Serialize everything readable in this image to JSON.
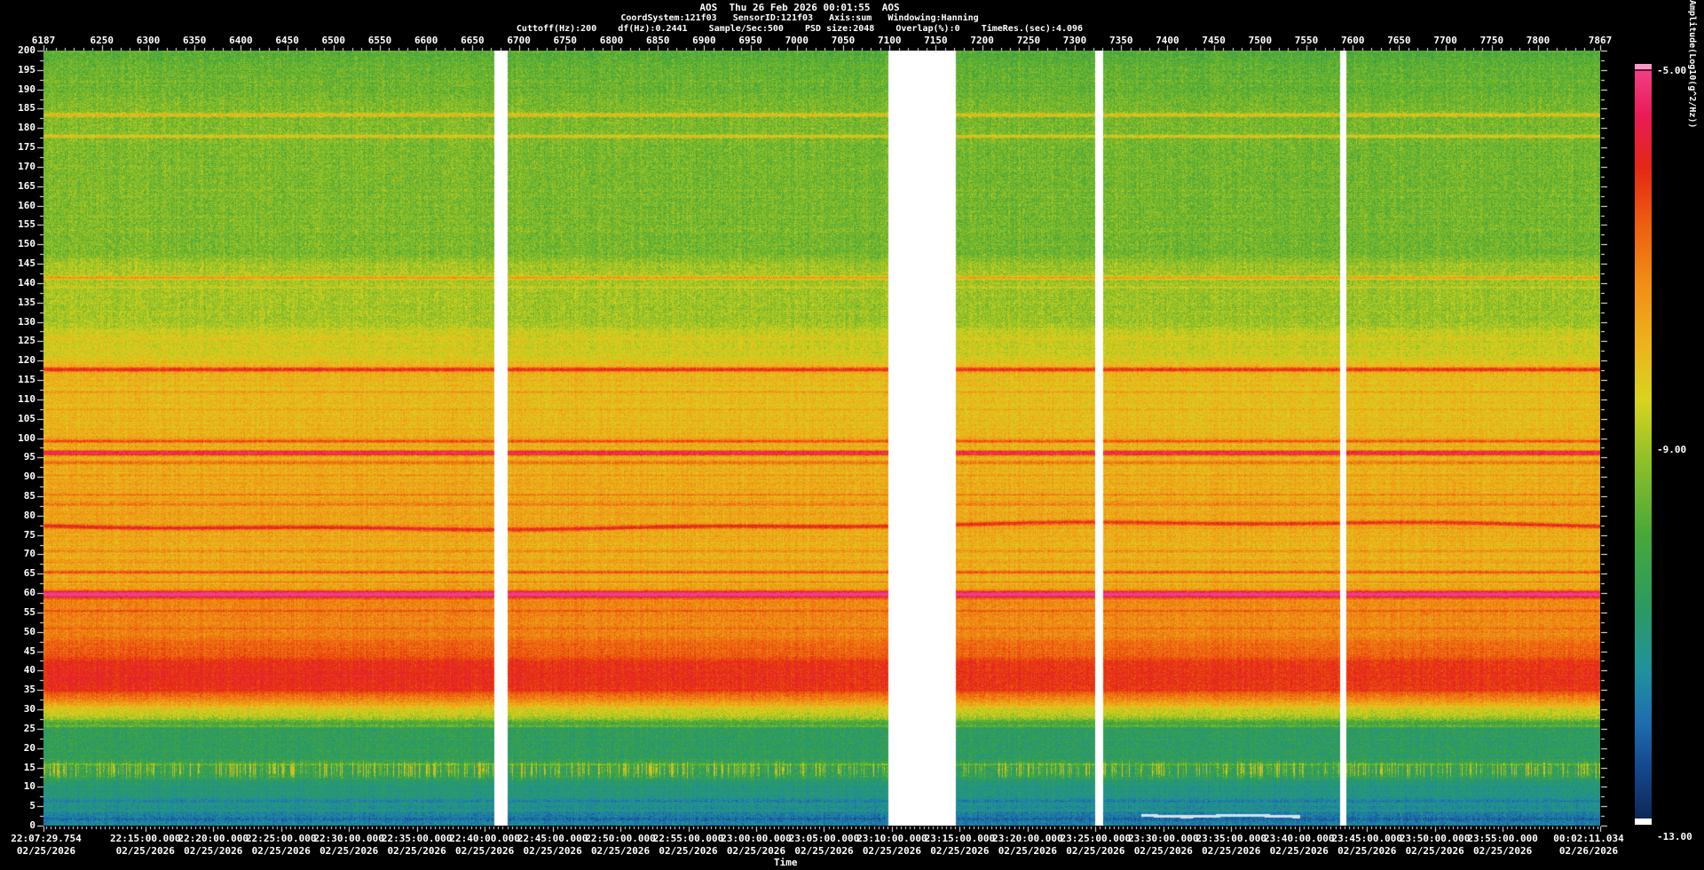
{
  "header": {
    "line1": "AOS  Thu 26 Feb 2026 00:01:55  AOS",
    "line2": "CoordSystem:121f03   SensorID:121f03   Axis:sum   Windowing:Hanning",
    "line3": "Cuttoff(Hz):200    df(Hz):0.2441    Sample/Sec:500    PSD size:2048    Overlap(%):0    TimeRes.(sec):4.096"
  },
  "top_axis": {
    "values": [
      6187,
      6250,
      6300,
      6350,
      6400,
      6450,
      6500,
      6550,
      6600,
      6650,
      6700,
      6750,
      6800,
      6850,
      6900,
      6950,
      7000,
      7050,
      7100,
      7150,
      7200,
      7250,
      7300,
      7350,
      7400,
      7450,
      7500,
      7550,
      7600,
      7650,
      7700,
      7750,
      7800,
      7867
    ]
  },
  "left_axis": {
    "values": [
      200,
      195,
      190,
      185,
      180,
      175,
      170,
      165,
      160,
      155,
      150,
      145,
      140,
      135,
      130,
      125,
      120,
      115,
      110,
      105,
      100,
      95,
      90,
      85,
      80,
      75,
      70,
      65,
      60,
      55,
      50,
      45,
      40,
      35,
      30,
      25,
      20,
      15,
      10,
      5,
      0
    ]
  },
  "bottom_axis": {
    "label": "Time",
    "ticks": [
      {
        "time": "22:07:29.754",
        "date": "02/25/2026"
      },
      {
        "time": "22:15:00.000",
        "date": "02/25/2026"
      },
      {
        "time": "22:20:00.000",
        "date": "02/25/2026"
      },
      {
        "time": "22:25:00.000",
        "date": "02/25/2026"
      },
      {
        "time": "22:30:00.000",
        "date": "02/25/2026"
      },
      {
        "time": "22:35:00.000",
        "date": "02/25/2026"
      },
      {
        "time": "22:40:00.000",
        "date": "02/25/2026"
      },
      {
        "time": "22:45:00.000",
        "date": "02/25/2026"
      },
      {
        "time": "22:50:00.000",
        "date": "02/25/2026"
      },
      {
        "time": "22:55:00.000",
        "date": "02/25/2026"
      },
      {
        "time": "23:00:00.000",
        "date": "02/25/2026"
      },
      {
        "time": "23:05:00.000",
        "date": "02/25/2026"
      },
      {
        "time": "23:10:00.000",
        "date": "02/25/2026"
      },
      {
        "time": "23:15:00.000",
        "date": "02/25/2026"
      },
      {
        "time": "23:20:00.000",
        "date": "02/25/2026"
      },
      {
        "time": "23:25:00.000",
        "date": "02/25/2026"
      },
      {
        "time": "23:30:00.000",
        "date": "02/25/2026"
      },
      {
        "time": "23:35:00.000",
        "date": "02/25/2026"
      },
      {
        "time": "23:40:00.000",
        "date": "02/25/2026"
      },
      {
        "time": "23:45:00.000",
        "date": "02/25/2026"
      },
      {
        "time": "23:50:00.000",
        "date": "02/25/2026"
      },
      {
        "time": "23:55:00.000",
        "date": "02/25/2026"
      },
      {
        "time": "00:02:11.034",
        "date": "02/26/2026"
      }
    ]
  },
  "colorbar": {
    "title": "Amplitude(Log10(g^2/Hz))",
    "labels": [
      "-5.00",
      "-9.00",
      "-13.00"
    ],
    "top_cap_color": "#f799c5",
    "top_line_color": "#6e0f2e",
    "bottom_cap_color": "#ffffff"
  },
  "chart_data": {
    "type": "spectrogram",
    "title": "AOS  Thu 26 Feb 2026 00:01:55  AOS",
    "x_axis": {
      "label": "Time",
      "start_time": "22:07:29.754",
      "start_date": "02/25/2026",
      "end_time": "00:02:11.034",
      "end_date": "02/26/2026",
      "major_tick_minutes": 5,
      "minor_tick_seconds": 20
    },
    "record_axis": {
      "first": 6187,
      "last": 7867,
      "step": 50
    },
    "freq_axis": {
      "unit": "Hz",
      "min": 0,
      "max": 200,
      "label_step": 5,
      "minor_step": 2.5
    },
    "amplitude_axis": {
      "label": "Amplitude(Log10(g^2/Hz))",
      "max": -5.0,
      "mid": -9.0,
      "min": -13.0
    },
    "data_gaps": [
      {
        "from": "22:40:41",
        "to": "22:41:43"
      },
      {
        "from": "23:09:46",
        "to": "23:14:44"
      },
      {
        "from": "23:24:59",
        "to": "23:25:35"
      },
      {
        "from": "23:43:01",
        "to": "23:43:28"
      }
    ],
    "colormap": [
      {
        "v": 0.0,
        "c": "#0e2858"
      },
      {
        "v": 0.07,
        "c": "#14498e"
      },
      {
        "v": 0.13,
        "c": "#1e6eb0"
      },
      {
        "v": 0.2,
        "c": "#20929c"
      },
      {
        "v": 0.28,
        "c": "#2b9a62"
      },
      {
        "v": 0.38,
        "c": "#48a838"
      },
      {
        "v": 0.48,
        "c": "#90c028"
      },
      {
        "v": 0.56,
        "c": "#d8d41f"
      },
      {
        "v": 0.64,
        "c": "#eeb01c"
      },
      {
        "v": 0.72,
        "c": "#f08c14"
      },
      {
        "v": 0.8,
        "c": "#ee5a10"
      },
      {
        "v": 0.87,
        "c": "#e42814"
      },
      {
        "v": 0.94,
        "c": "#ea1a55"
      },
      {
        "v": 1.0,
        "c": "#ef3f85"
      }
    ],
    "band_profile": [
      {
        "f_hi": 200,
        "f_lo": 196,
        "level": 0.4,
        "noise": 0.07
      },
      {
        "f_hi": 196,
        "f_lo": 188,
        "level": 0.43,
        "noise": 0.07
      },
      {
        "f_hi": 188,
        "f_lo": 146,
        "level": 0.45,
        "noise": 0.07
      },
      {
        "f_hi": 146,
        "f_lo": 128,
        "level": 0.5,
        "noise": 0.065
      },
      {
        "f_hi": 128,
        "f_lo": 120,
        "level": 0.56,
        "noise": 0.06
      },
      {
        "f_hi": 120,
        "f_lo": 101,
        "level": 0.62,
        "noise": 0.06
      },
      {
        "f_hi": 101,
        "f_lo": 88,
        "level": 0.645,
        "noise": 0.06
      },
      {
        "f_hi": 88,
        "f_lo": 76,
        "level": 0.665,
        "noise": 0.06
      },
      {
        "f_hi": 76,
        "f_lo": 61,
        "level": 0.655,
        "noise": 0.06
      },
      {
        "f_hi": 61,
        "f_lo": 48,
        "level": 0.73,
        "noise": 0.055
      },
      {
        "f_hi": 48,
        "f_lo": 43,
        "level": 0.79,
        "noise": 0.05
      },
      {
        "f_hi": 43,
        "f_lo": 34,
        "level": 0.865,
        "noise": 0.045
      },
      {
        "f_hi": 34,
        "f_lo": 31,
        "level": 0.72,
        "noise": 0.06
      },
      {
        "f_hi": 31,
        "f_lo": 27,
        "level": 0.55,
        "noise": 0.07
      },
      {
        "f_hi": 27,
        "f_lo": 17,
        "level": 0.3,
        "noise": 0.07
      },
      {
        "f_hi": 17,
        "f_lo": 12,
        "level": 0.32,
        "noise": 0.09
      },
      {
        "f_hi": 12,
        "f_lo": 7,
        "level": 0.245,
        "noise": 0.06
      },
      {
        "f_hi": 7,
        "f_lo": 4,
        "level": 0.215,
        "noise": 0.06
      },
      {
        "f_hi": 4,
        "f_lo": 0,
        "level": 0.165,
        "noise": 0.06
      }
    ],
    "tonal_lines": [
      {
        "f": 183.5,
        "boost": 0.2,
        "w": 2
      },
      {
        "f": 178.0,
        "boost": 0.15,
        "w": 2
      },
      {
        "f": 141.5,
        "boost": 0.2,
        "w": 2
      },
      {
        "f": 139.0,
        "boost": 0.08,
        "w": 1
      },
      {
        "f": 117.8,
        "boost": 0.25,
        "w": 3
      },
      {
        "f": 112.0,
        "boost": 0.07,
        "w": 1
      },
      {
        "f": 107.5,
        "boost": 0.07,
        "w": 1
      },
      {
        "f": 99.3,
        "boost": 0.2,
        "w": 2
      },
      {
        "f": 96.3,
        "boost": 0.33,
        "w": 3
      },
      {
        "f": 93.8,
        "boost": 0.12,
        "w": 2
      },
      {
        "f": 90.5,
        "boost": 0.07,
        "w": 1
      },
      {
        "f": 85.5,
        "boost": 0.08,
        "w": 1
      },
      {
        "f": 83.0,
        "boost": 0.08,
        "w": 2
      },
      {
        "f": 71.0,
        "boost": 0.07,
        "w": 1
      },
      {
        "f": 68.0,
        "boost": 0.06,
        "w": 1
      },
      {
        "f": 65.5,
        "boost": 0.18,
        "w": 2
      },
      {
        "f": 63.0,
        "boost": 0.08,
        "w": 1
      },
      {
        "f": 59.8,
        "boost": 0.34,
        "w": 4
      },
      {
        "f": 55.5,
        "boost": 0.08,
        "w": 1
      },
      {
        "f": 51.0,
        "boost": 0.06,
        "w": 1
      },
      {
        "f": 25.8,
        "boost": 0.11,
        "w": 2
      },
      {
        "f": 15.9,
        "boost": 0.13,
        "w": 1
      },
      {
        "f": 6.5,
        "boost": -0.05,
        "w": 2
      },
      {
        "f": 4.0,
        "boost": 0.06,
        "w": 1
      },
      {
        "f": 1.8,
        "boost": -0.05,
        "w": 2
      }
    ],
    "features": {
      "spiky_band": {
        "f_center": 14.3,
        "f_width": 1.8,
        "strength": 0.33
      },
      "wavy_line": {
        "f": 77.5,
        "boost": 0.22
      },
      "white_line": {
        "f": 2.6,
        "from": "23:28:22",
        "to": "23:40:00"
      }
    }
  }
}
